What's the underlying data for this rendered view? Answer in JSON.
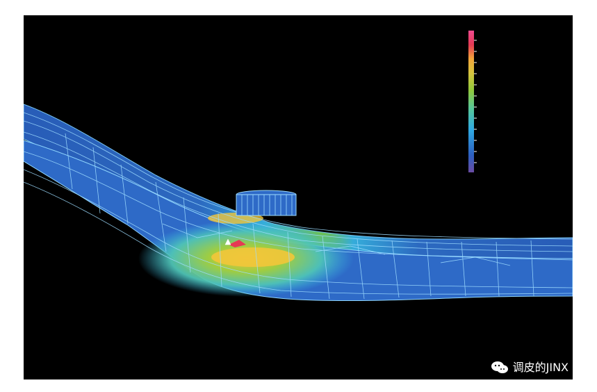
{
  "scene": {
    "background": "#000000",
    "palette": {
      "low": "#2b62c1",
      "mid_low": "#38b6e6",
      "mid": "#7ccc3b",
      "high": "#f2c73a",
      "peak": "#e63a54",
      "edge": "#91d8ff"
    },
    "colorbar_stops": [
      "#6a4ca3",
      "#2d5fc0",
      "#2fa9e3",
      "#56c79a",
      "#91c83b",
      "#d6c43e",
      "#f2a63a",
      "#e53a54",
      "#f04a8f"
    ]
  },
  "watermark": {
    "icon": "wechat-icon",
    "text": "调皮的JINX"
  }
}
